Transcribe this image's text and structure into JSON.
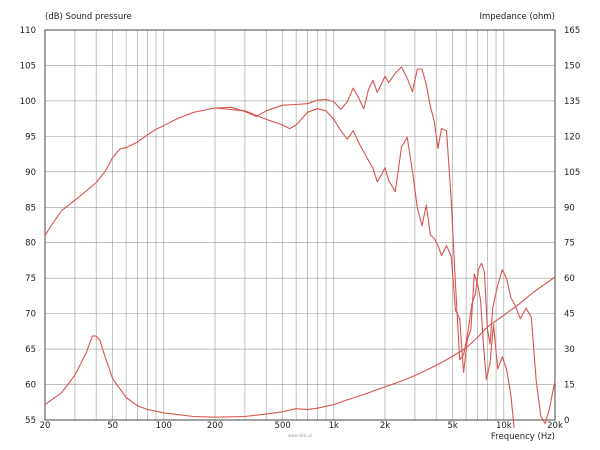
{
  "chart_data": {
    "type": "line",
    "title": "",
    "left_axis": {
      "label": "(dB)  Sound pressure",
      "range": [
        55,
        110
      ],
      "ticks": [
        55,
        60,
        65,
        70,
        75,
        80,
        85,
        90,
        95,
        100,
        105,
        110
      ]
    },
    "right_axis": {
      "label": "Impedance  (ohm)",
      "range": [
        0,
        165
      ],
      "ticks": [
        0,
        15,
        30,
        45,
        60,
        75,
        90,
        105,
        120,
        135,
        150,
        165
      ]
    },
    "x_axis": {
      "label": "Frequency  (Hz)",
      "scale": "log",
      "range": [
        20,
        20000
      ],
      "tick_values": [
        20,
        50,
        100,
        200,
        500,
        1000,
        2000,
        5000,
        10000,
        20000
      ],
      "tick_labels": [
        "20",
        "50",
        "100",
        "200",
        "500",
        "1k",
        "2k",
        "5k",
        "10k",
        "20k"
      ]
    },
    "grid": true,
    "colors": {
      "curve": "#d9544f",
      "grid": "#9a9a9a",
      "frame": "#444444"
    },
    "series": [
      {
        "axis": "left",
        "values": [
          [
            20,
            81
          ],
          [
            22,
            82.6
          ],
          [
            25,
            84.5
          ],
          [
            30,
            86
          ],
          [
            35,
            87.3
          ],
          [
            40,
            88.5
          ],
          [
            45,
            90
          ],
          [
            50,
            92
          ],
          [
            55,
            93.2
          ],
          [
            60,
            93.4
          ],
          [
            70,
            94.2
          ],
          [
            80,
            95.2
          ],
          [
            90,
            96
          ],
          [
            100,
            96.5
          ],
          [
            120,
            97.5
          ],
          [
            150,
            98.4
          ],
          [
            200,
            99
          ],
          [
            250,
            99.1
          ],
          [
            300,
            98.5
          ],
          [
            350,
            97.8
          ],
          [
            400,
            98.6
          ],
          [
            500,
            99.4
          ],
          [
            600,
            99.5
          ],
          [
            700,
            99.6
          ],
          [
            800,
            100.1
          ],
          [
            900,
            100.2
          ],
          [
            1000,
            99.9
          ],
          [
            1100,
            98.8
          ],
          [
            1200,
            99.9
          ],
          [
            1300,
            101.8
          ],
          [
            1400,
            100.4
          ],
          [
            1500,
            98.9
          ],
          [
            1600,
            101.6
          ],
          [
            1700,
            102.9
          ],
          [
            1800,
            101.2
          ],
          [
            1900,
            102.3
          ],
          [
            2000,
            103.5
          ],
          [
            2100,
            102.6
          ],
          [
            2300,
            103.9
          ],
          [
            2500,
            104.8
          ],
          [
            2700,
            103.2
          ],
          [
            2900,
            101.3
          ],
          [
            3100,
            104.5
          ],
          [
            3300,
            104.5
          ],
          [
            3500,
            102.3
          ],
          [
            3700,
            99.2
          ],
          [
            3900,
            97.1
          ],
          [
            4100,
            93.3
          ],
          [
            4300,
            96.1
          ],
          [
            4600,
            95.8
          ],
          [
            4900,
            86.1
          ],
          [
            5200,
            74.1
          ],
          [
            5500,
            63.5
          ],
          [
            5800,
            64.2
          ],
          [
            6100,
            66.8
          ],
          [
            6500,
            71.4
          ],
          [
            6800,
            72.8
          ],
          [
            7100,
            76.3
          ],
          [
            7400,
            77.1
          ],
          [
            7700,
            75.8
          ],
          [
            8000,
            67.8
          ],
          [
            8300,
            65.7
          ],
          [
            8600,
            70.8
          ],
          [
            9200,
            74
          ],
          [
            9800,
            76.2
          ],
          [
            10400,
            74.9
          ],
          [
            11000,
            72.2
          ],
          [
            11500,
            71.5
          ],
          [
            12500,
            69.3
          ],
          [
            13500,
            70.8
          ],
          [
            14500,
            69.5
          ],
          [
            15500,
            60.5
          ],
          [
            16500,
            55.5
          ],
          [
            17500,
            54.5
          ],
          [
            18500,
            56.5
          ],
          [
            20000,
            60.5
          ]
        ]
      },
      {
        "axis": "left",
        "values": [
          [
            200,
            99
          ],
          [
            300,
            98.6
          ],
          [
            400,
            97.4
          ],
          [
            500,
            96.6
          ],
          [
            550,
            96.1
          ],
          [
            600,
            96.6
          ],
          [
            700,
            98.4
          ],
          [
            800,
            98.9
          ],
          [
            900,
            98.6
          ],
          [
            1000,
            97.4
          ],
          [
            1100,
            95.8
          ],
          [
            1200,
            94.6
          ],
          [
            1300,
            95.8
          ],
          [
            1400,
            94.1
          ],
          [
            1500,
            92.8
          ],
          [
            1600,
            91.6
          ],
          [
            1700,
            90.5
          ],
          [
            1800,
            88.6
          ],
          [
            1900,
            89.5
          ],
          [
            2000,
            90.6
          ],
          [
            2100,
            88.8
          ],
          [
            2300,
            87.2
          ],
          [
            2500,
            93.5
          ],
          [
            2700,
            94.9
          ],
          [
            2900,
            90.1
          ],
          [
            3100,
            84.9
          ],
          [
            3300,
            82.4
          ],
          [
            3500,
            85.3
          ],
          [
            3700,
            81.1
          ],
          [
            3900,
            80.6
          ],
          [
            4100,
            79.6
          ],
          [
            4300,
            78.2
          ],
          [
            4600,
            79.6
          ],
          [
            4900,
            78.1
          ],
          [
            5200,
            70.5
          ],
          [
            5500,
            69.3
          ],
          [
            5800,
            61.7
          ],
          [
            6100,
            66.3
          ],
          [
            6400,
            67.8
          ],
          [
            6700,
            75.6
          ],
          [
            7000,
            74.2
          ],
          [
            7300,
            71.9
          ],
          [
            7600,
            65.4
          ],
          [
            7900,
            60.7
          ],
          [
            8300,
            63.1
          ],
          [
            8700,
            68.5
          ],
          [
            9200,
            62.2
          ],
          [
            9800,
            63.9
          ],
          [
            10400,
            62.1
          ],
          [
            11000,
            58.5
          ],
          [
            11500,
            53.5
          ]
        ]
      },
      {
        "axis": "right",
        "values": [
          [
            20,
            6.5
          ],
          [
            25,
            11.5
          ],
          [
            30,
            19
          ],
          [
            35,
            28.5
          ],
          [
            38,
            35.5
          ],
          [
            40,
            35.5
          ],
          [
            42,
            33.8
          ],
          [
            45,
            27
          ],
          [
            50,
            17.5
          ],
          [
            60,
            9.5
          ],
          [
            70,
            6
          ],
          [
            80,
            4.5
          ],
          [
            100,
            3
          ],
          [
            150,
            1.5
          ],
          [
            200,
            1.2
          ],
          [
            300,
            1.5
          ],
          [
            400,
            2.5
          ],
          [
            500,
            3.5
          ],
          [
            600,
            4.8
          ],
          [
            700,
            4.4
          ],
          [
            800,
            5
          ],
          [
            1000,
            6.5
          ],
          [
            1200,
            8.5
          ],
          [
            1500,
            10.8
          ],
          [
            2000,
            14
          ],
          [
            2500,
            16.5
          ],
          [
            3000,
            18.8
          ],
          [
            4000,
            23.1
          ],
          [
            5000,
            26.9
          ],
          [
            6000,
            30.5
          ],
          [
            7000,
            34.9
          ],
          [
            8000,
            39.4
          ],
          [
            10000,
            44.3
          ],
          [
            12000,
            48.5
          ],
          [
            15000,
            54.2
          ],
          [
            20000,
            60.5
          ]
        ]
      }
    ],
    "watermark": "www.lddc.pl"
  }
}
